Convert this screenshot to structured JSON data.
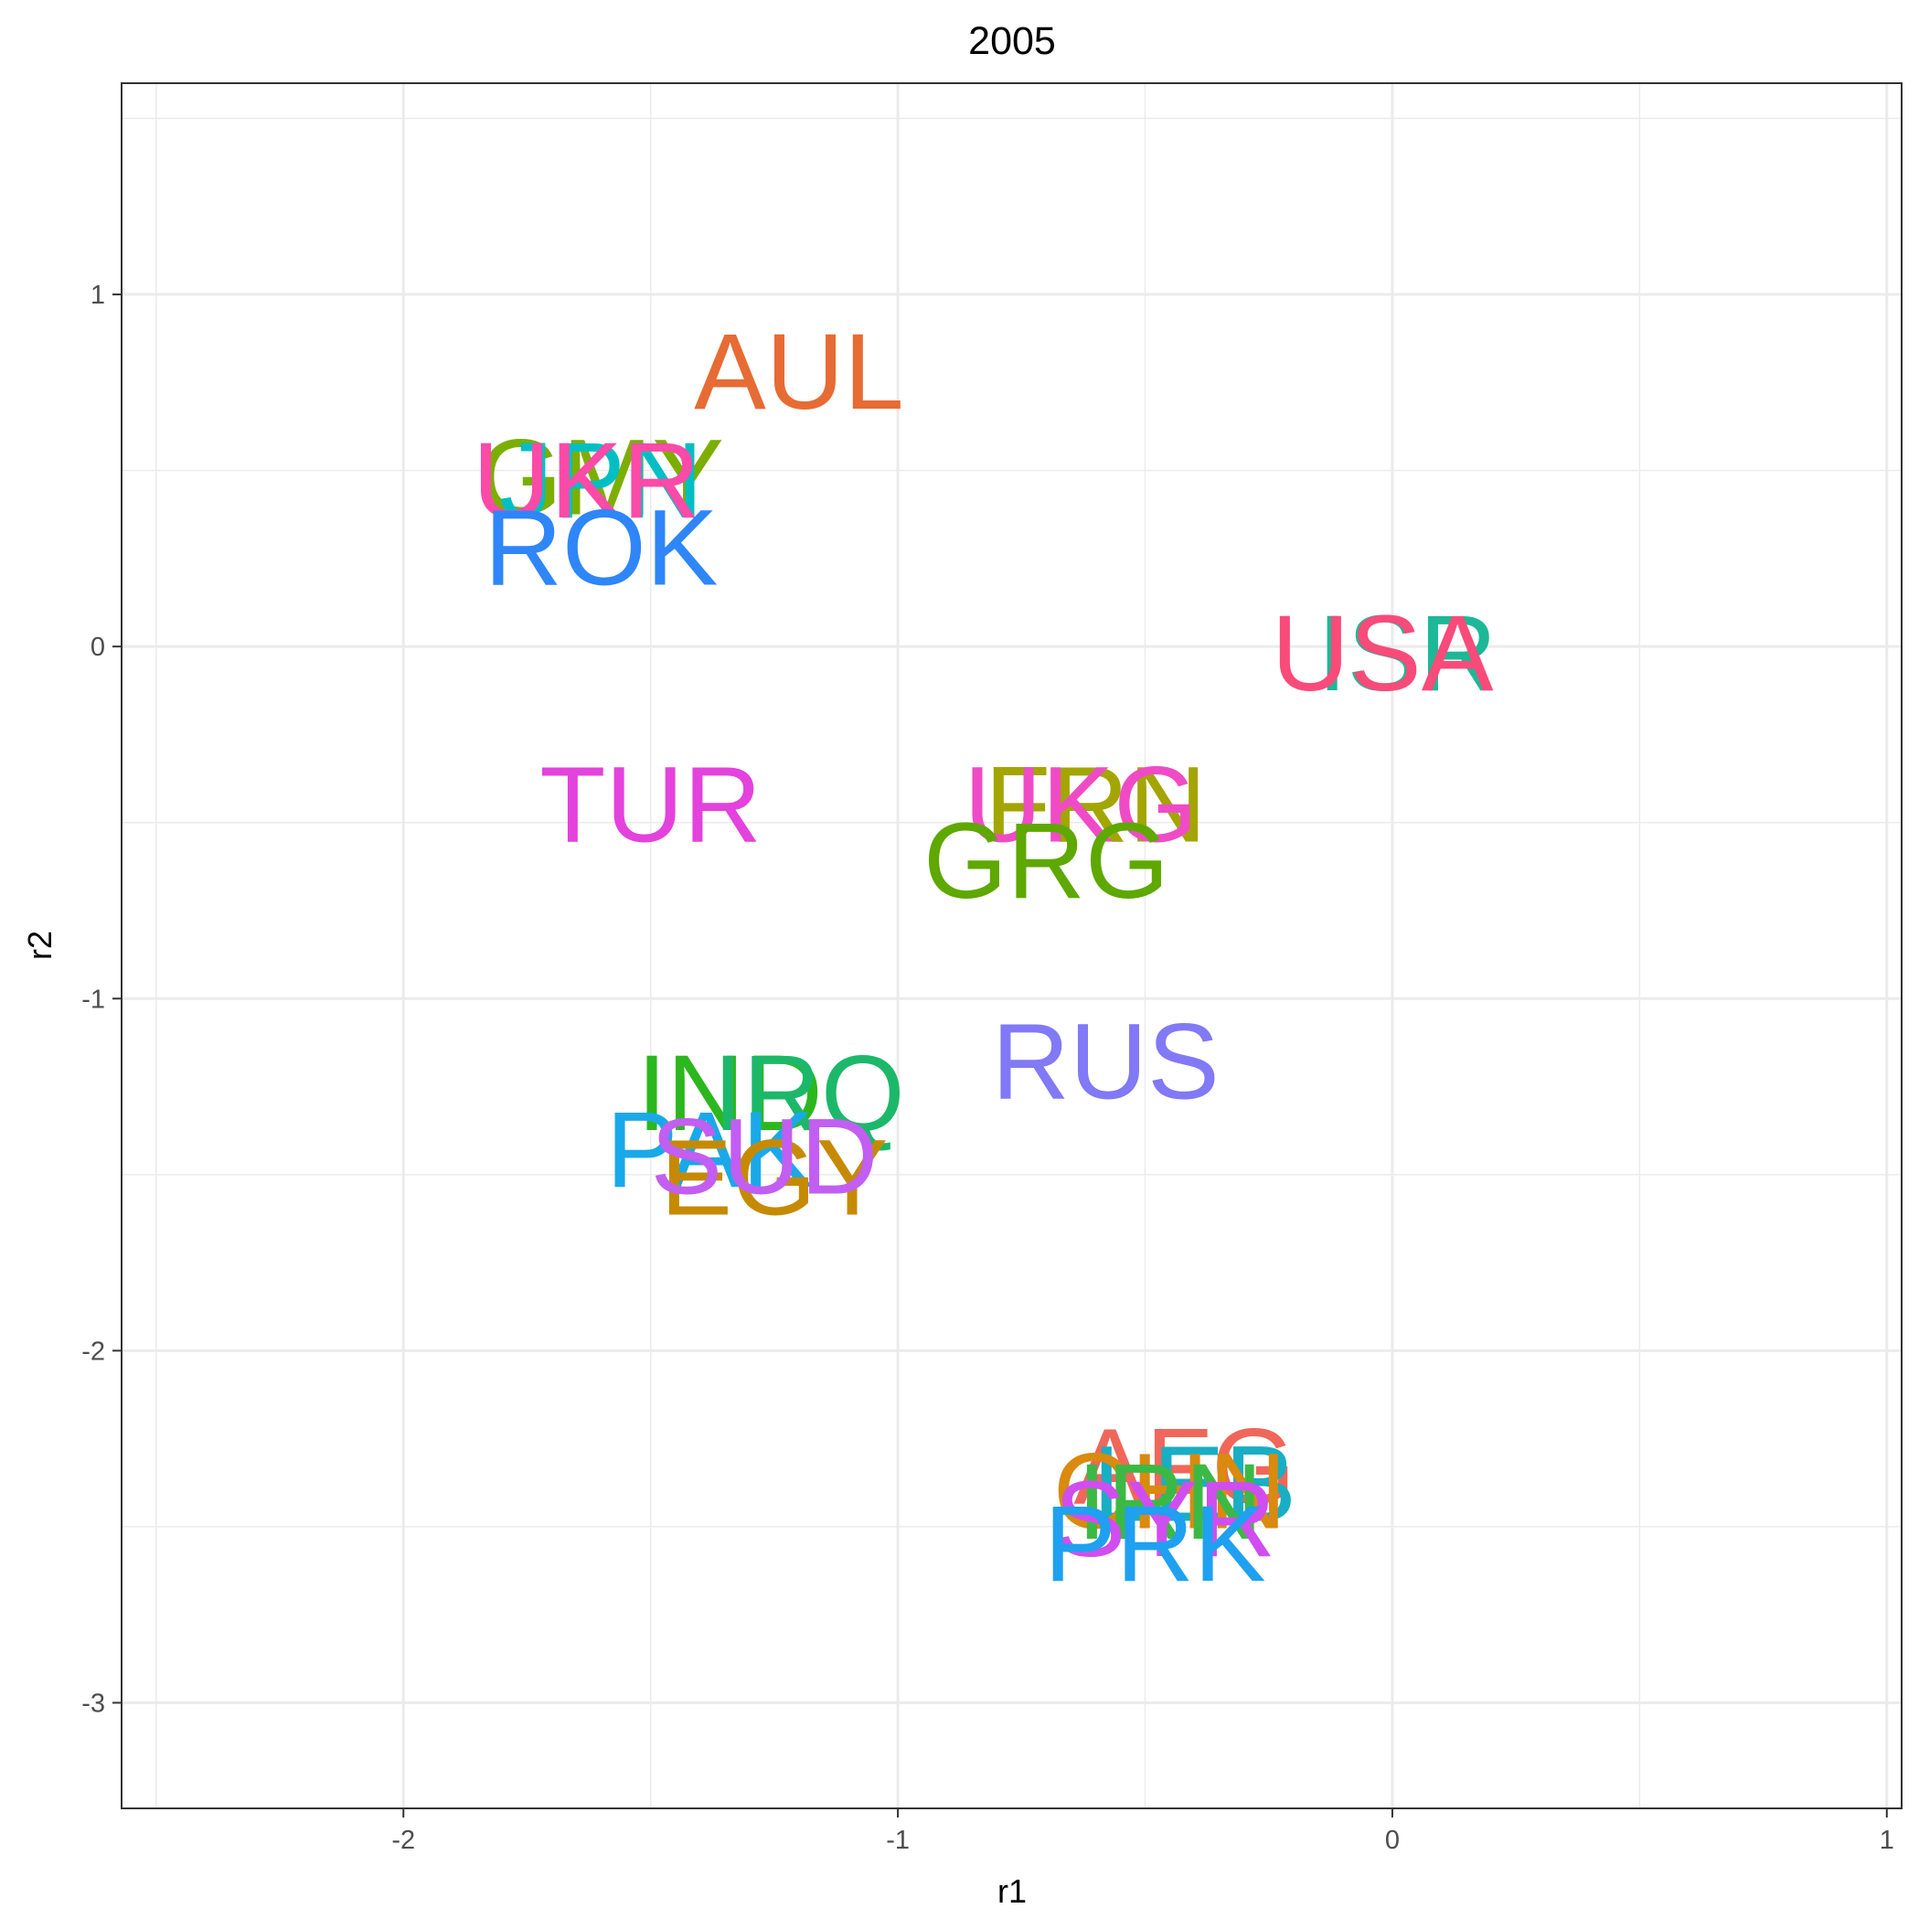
{
  "chart_data": {
    "type": "scatter",
    "title": "2005",
    "xlabel": "r1",
    "ylabel": "r2",
    "xlim": [
      -2.57,
      1.03
    ],
    "ylim": [
      -3.3,
      1.6
    ],
    "xticks": [
      -2,
      -1,
      0,
      1
    ],
    "yticks": [
      -3,
      -2,
      -1,
      0,
      1
    ],
    "xtick_labels": [
      "-2",
      "-1",
      "0",
      "1"
    ],
    "ytick_labels": [
      "-3",
      "-2",
      "-1",
      "0",
      "1"
    ],
    "grid": true,
    "legend": "none",
    "points": [
      {
        "label": "AUL",
        "x": -1.2,
        "y": 0.78,
        "color": "#E76B34"
      },
      {
        "label": "GMY",
        "x": -1.6,
        "y": 0.48,
        "color": "#7CAE00"
      },
      {
        "label": "JPN",
        "x": -1.6,
        "y": 0.47,
        "color": "#00BFC4"
      },
      {
        "label": "UKR",
        "x": -1.63,
        "y": 0.47,
        "color": "#FC4AA8"
      },
      {
        "label": "ROK",
        "x": -1.6,
        "y": 0.28,
        "color": "#2E86F8"
      },
      {
        "label": "ISR",
        "x": 0.03,
        "y": -0.02,
        "color": "#1CB897"
      },
      {
        "label": "USA",
        "x": -0.02,
        "y": -0.02,
        "color": "#F84B7A"
      },
      {
        "label": "TUR",
        "x": -1.5,
        "y": -0.45,
        "color": "#E442DC"
      },
      {
        "label": "FRN",
        "x": -0.6,
        "y": -0.45,
        "color": "#A3A500"
      },
      {
        "label": "UKG",
        "x": -0.63,
        "y": -0.45,
        "color": "#F04BC6"
      },
      {
        "label": "GRG",
        "x": -0.7,
        "y": -0.61,
        "color": "#5EA800"
      },
      {
        "label": "RUS",
        "x": -0.58,
        "y": -1.18,
        "color": "#8179F5"
      },
      {
        "label": "IND",
        "x": -1.34,
        "y": -1.27,
        "color": "#2CB71E"
      },
      {
        "label": "IRQ",
        "x": -1.18,
        "y": -1.27,
        "color": "#1CB86A"
      },
      {
        "label": "PAK",
        "x": -1.38,
        "y": -1.43,
        "color": "#1AA9E8"
      },
      {
        "label": "EGY",
        "x": -1.25,
        "y": -1.51,
        "color": "#C68A00"
      },
      {
        "label": "SUD",
        "x": -1.27,
        "y": -1.45,
        "color": "#C25EF2"
      },
      {
        "label": "AFG",
        "x": -0.42,
        "y": -2.33,
        "color": "#F0665A"
      },
      {
        "label": "LEB",
        "x": -0.4,
        "y": -2.38,
        "color": "#18AEC4"
      },
      {
        "label": "CHN",
        "x": -0.45,
        "y": -2.4,
        "color": "#D98A0F"
      },
      {
        "label": "IRN",
        "x": -0.45,
        "y": -2.43,
        "color": "#3CB944"
      },
      {
        "label": "SYR",
        "x": -0.46,
        "y": -2.48,
        "color": "#D04DF0"
      },
      {
        "label": "PRK",
        "x": -0.48,
        "y": -2.55,
        "color": "#1FA0F0"
      }
    ]
  }
}
